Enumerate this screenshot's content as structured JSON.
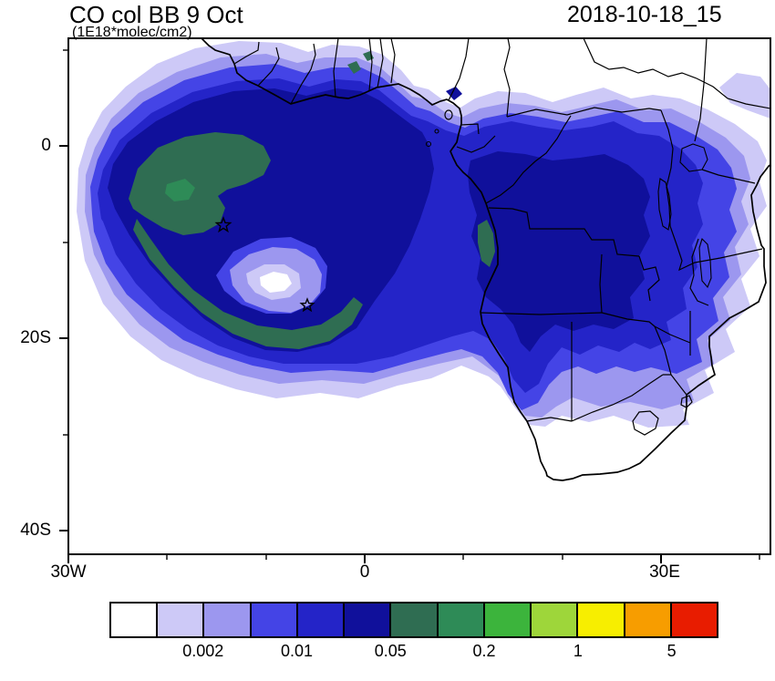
{
  "header": {
    "title": "CO col BB 9 Oct",
    "subtitle": "(1E18*molec/cm2)",
    "date_label": "2018-10-18_15"
  },
  "axes": {
    "y_tick_labels": [
      "0",
      "20S",
      "40S"
    ],
    "x_tick_labels": [
      "30W",
      "0",
      "30E"
    ]
  },
  "colorbar": {
    "colors": [
      "#ffffff",
      "#cdc9f7",
      "#9c97ef",
      "#4444e6",
      "#2424c8",
      "#10109b",
      "#2f6d52",
      "#2e8b57",
      "#3cb43c",
      "#9ed63a",
      "#f7ee00",
      "#f79d00",
      "#e81c00"
    ],
    "labels": [
      "0.002",
      "0.01",
      "0.05",
      "0.2",
      "1",
      "5"
    ]
  },
  "chart_data": {
    "type": "heatmap",
    "variant": "filled_contour_map",
    "title": "CO col BB 9 Oct",
    "units_label": "(1E18*molec/cm2)",
    "time_label": "2018-10-18_15",
    "region": "Africa and tropical South Atlantic",
    "x_axis": {
      "tick_labels": [
        "30W",
        "0",
        "30E"
      ],
      "approx_lon_range_deg": [
        -30,
        41
      ]
    },
    "y_axis": {
      "tick_labels": [
        "0",
        "20S",
        "40S"
      ],
      "approx_lat_range_deg": [
        -42.5,
        11
      ]
    },
    "colorbar": {
      "orientation": "horizontal",
      "position": "bottom",
      "n_cells": 13,
      "labeled_boundary_values": [
        0.002,
        0.01,
        0.05,
        0.2,
        1,
        5
      ]
    },
    "field_summary": {
      "plume_core_shading": "dark green (6th-7th color cells) centered near 25W-5W, 3S-20S over the Atlantic",
      "broad_plume_shading": "blue cells spanning 30W-35E, 10N-25S across the Atlantic and central/southern Africa",
      "clear_areas": "white over SW ocean corner, far north-east land and far south land"
    },
    "markers": [
      {
        "shape": "star",
        "approx_lon_deg": -14.4,
        "approx_lat_deg": -8.1
      },
      {
        "shape": "star",
        "approx_lon_deg": -5.8,
        "approx_lat_deg": -16.6
      }
    ]
  }
}
